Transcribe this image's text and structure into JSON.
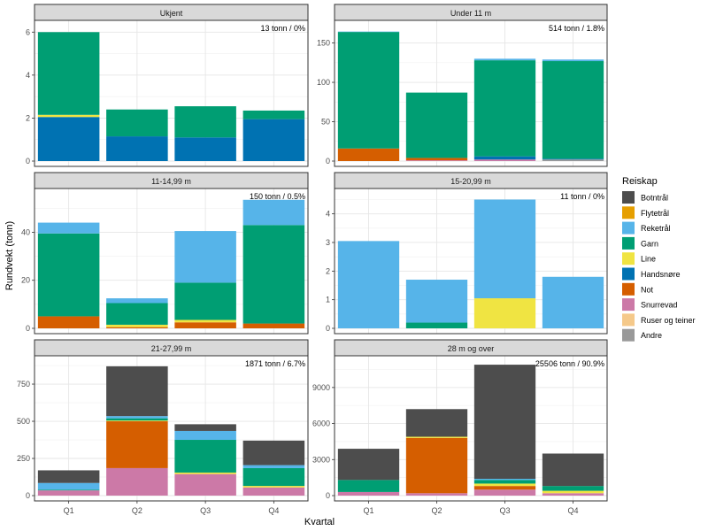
{
  "chart_data": {
    "type": "bar",
    "stacked": true,
    "facet_layout": "3x2",
    "xlabel": "Kvartal",
    "ylabel": "Rundvekt (tonn)",
    "categories": [
      "Q1",
      "Q2",
      "Q3",
      "Q4"
    ],
    "legend": {
      "title": "Reiskap",
      "placement": "right",
      "entries": [
        {
          "name": "Botntrål",
          "color": "#4d4d4d"
        },
        {
          "name": "Flytetrål",
          "color": "#e69f00"
        },
        {
          "name": "Reketrål",
          "color": "#56b4e9"
        },
        {
          "name": "Garn",
          "color": "#009e73"
        },
        {
          "name": "Line",
          "color": "#f0e442"
        },
        {
          "name": "Handsnøre",
          "color": "#0072b2"
        },
        {
          "name": "Not",
          "color": "#d55e00"
        },
        {
          "name": "Snurrevad",
          "color": "#cc79a7"
        },
        {
          "name": "Ruser og teiner",
          "color": "#f5c98a"
        },
        {
          "name": "Andre",
          "color": "#999999"
        }
      ]
    },
    "stack_order_bottom_to_top": [
      "Andre",
      "Ruser og teiner",
      "Snurrevad",
      "Not",
      "Handsnøre",
      "Line",
      "Garn",
      "Reketrål",
      "Flytetrål",
      "Botntrål"
    ],
    "panels": [
      {
        "title": "Ukjent",
        "annotation": "13 tonn / 0%",
        "ylim": [
          0,
          6.3
        ],
        "ticks": [
          0,
          2,
          4,
          6
        ],
        "stacks": [
          {
            "category": "Q1",
            "segments": [
              {
                "gear": "Handsnøre",
                "value": 2.05
              },
              {
                "gear": "Line",
                "value": 0.1
              },
              {
                "gear": "Garn",
                "value": 3.85
              }
            ]
          },
          {
            "category": "Q2",
            "segments": [
              {
                "gear": "Handsnøre",
                "value": 1.15
              },
              {
                "gear": "Garn",
                "value": 1.25
              }
            ]
          },
          {
            "category": "Q3",
            "segments": [
              {
                "gear": "Handsnøre",
                "value": 1.1
              },
              {
                "gear": "Garn",
                "value": 1.45
              }
            ]
          },
          {
            "category": "Q4",
            "segments": [
              {
                "gear": "Handsnøre",
                "value": 1.95
              },
              {
                "gear": "Garn",
                "value": 0.4
              }
            ]
          }
        ]
      },
      {
        "title": "Under 11 m",
        "annotation": "514 tonn / 1.8%",
        "ylim": [
          0,
          172
        ],
        "ticks": [
          0,
          50,
          100,
          150
        ],
        "stacks": [
          {
            "category": "Q1",
            "segments": [
              {
                "gear": "Not",
                "value": 16
              },
              {
                "gear": "Garn",
                "value": 148
              },
              {
                "gear": "Reketrål",
                "value": 0.5
              }
            ]
          },
          {
            "category": "Q2",
            "segments": [
              {
                "gear": "Snurrevad",
                "value": 1
              },
              {
                "gear": "Not",
                "value": 3
              },
              {
                "gear": "Garn",
                "value": 83
              }
            ]
          },
          {
            "category": "Q3",
            "segments": [
              {
                "gear": "Snurrevad",
                "value": 2
              },
              {
                "gear": "Handsnøre",
                "value": 4
              },
              {
                "gear": "Garn",
                "value": 122
              },
              {
                "gear": "Reketrål",
                "value": 2
              }
            ]
          },
          {
            "category": "Q4",
            "segments": [
              {
                "gear": "Andre",
                "value": 2
              },
              {
                "gear": "Handsnøre",
                "value": 1
              },
              {
                "gear": "Garn",
                "value": 124
              },
              {
                "gear": "Reketrål",
                "value": 2
              }
            ]
          }
        ]
      },
      {
        "title": "11-14,99 m",
        "annotation": "150 tonn / 0.5%",
        "ylim": [
          0,
          56
        ],
        "ticks": [
          0,
          20,
          40
        ],
        "stacks": [
          {
            "category": "Q1",
            "segments": [
              {
                "gear": "Not",
                "value": 5
              },
              {
                "gear": "Garn",
                "value": 34.5
              },
              {
                "gear": "Reketrål",
                "value": 4.5
              }
            ]
          },
          {
            "category": "Q2",
            "segments": [
              {
                "gear": "Not",
                "value": 0.5
              },
              {
                "gear": "Line",
                "value": 1
              },
              {
                "gear": "Garn",
                "value": 9
              },
              {
                "gear": "Reketrål",
                "value": 2
              }
            ]
          },
          {
            "category": "Q3",
            "segments": [
              {
                "gear": "Not",
                "value": 2.5
              },
              {
                "gear": "Line",
                "value": 1
              },
              {
                "gear": "Garn",
                "value": 15.5
              },
              {
                "gear": "Reketrål",
                "value": 21.5
              }
            ]
          },
          {
            "category": "Q4",
            "segments": [
              {
                "gear": "Not",
                "value": 2
              },
              {
                "gear": "Garn",
                "value": 41
              },
              {
                "gear": "Reketrål",
                "value": 10.5
              }
            ]
          }
        ]
      },
      {
        "title": "15-20,99 m",
        "annotation": "11 tonn / 0%",
        "ylim": [
          0,
          4.7
        ],
        "ticks": [
          0,
          1,
          2,
          3,
          4
        ],
        "stacks": [
          {
            "category": "Q1",
            "segments": [
              {
                "gear": "Reketrål",
                "value": 3.05
              }
            ]
          },
          {
            "category": "Q2",
            "segments": [
              {
                "gear": "Garn",
                "value": 0.2
              },
              {
                "gear": "Reketrål",
                "value": 1.5
              }
            ]
          },
          {
            "category": "Q3",
            "segments": [
              {
                "gear": "Line",
                "value": 1.05
              },
              {
                "gear": "Reketrål",
                "value": 3.45
              }
            ]
          },
          {
            "category": "Q4",
            "segments": [
              {
                "gear": "Reketrål",
                "value": 1.8
              }
            ]
          }
        ]
      },
      {
        "title": "21-27,99 m",
        "annotation": "1871 tonn / 6.7%",
        "ylim": [
          0,
          905
        ],
        "ticks": [
          0,
          250,
          500,
          750
        ],
        "stacks": [
          {
            "category": "Q1",
            "segments": [
              {
                "gear": "Snurrevad",
                "value": 35
              },
              {
                "gear": "Garn",
                "value": 5
              },
              {
                "gear": "Reketrål",
                "value": 45
              },
              {
                "gear": "Botntrål",
                "value": 85
              }
            ]
          },
          {
            "category": "Q2",
            "segments": [
              {
                "gear": "Snurrevad",
                "value": 185
              },
              {
                "gear": "Not",
                "value": 315
              },
              {
                "gear": "Line",
                "value": 5
              },
              {
                "gear": "Garn",
                "value": 15
              },
              {
                "gear": "Reketrål",
                "value": 15
              },
              {
                "gear": "Botntrål",
                "value": 335
              }
            ]
          },
          {
            "category": "Q3",
            "segments": [
              {
                "gear": "Snurrevad",
                "value": 145
              },
              {
                "gear": "Line",
                "value": 10
              },
              {
                "gear": "Garn",
                "value": 220
              },
              {
                "gear": "Reketrål",
                "value": 60
              },
              {
                "gear": "Botntrål",
                "value": 45
              }
            ]
          },
          {
            "category": "Q4",
            "segments": [
              {
                "gear": "Snurrevad",
                "value": 55
              },
              {
                "gear": "Line",
                "value": 10
              },
              {
                "gear": "Garn",
                "value": 120
              },
              {
                "gear": "Reketrål",
                "value": 20
              },
              {
                "gear": "Botntrål",
                "value": 165
              }
            ]
          }
        ]
      },
      {
        "title": "28 m og over",
        "annotation": "25506 tonn / 90.9%",
        "ylim": [
          0,
          11200
        ],
        "ticks": [
          0,
          3000,
          6000,
          9000
        ],
        "stacks": [
          {
            "category": "Q1",
            "segments": [
              {
                "gear": "Snurrevad",
                "value": 300
              },
              {
                "gear": "Garn",
                "value": 1000
              },
              {
                "gear": "Botntrål",
                "value": 2600
              }
            ]
          },
          {
            "category": "Q2",
            "segments": [
              {
                "gear": "Snurrevad",
                "value": 200
              },
              {
                "gear": "Not",
                "value": 4600
              },
              {
                "gear": "Line",
                "value": 100
              },
              {
                "gear": "Botntrål",
                "value": 2300
              }
            ]
          },
          {
            "category": "Q3",
            "segments": [
              {
                "gear": "Snurrevad",
                "value": 500
              },
              {
                "gear": "Not",
                "value": 300
              },
              {
                "gear": "Line",
                "value": 200
              },
              {
                "gear": "Garn",
                "value": 300
              },
              {
                "gear": "Reketrål",
                "value": 100
              },
              {
                "gear": "Botntrål",
                "value": 9500
              }
            ]
          },
          {
            "category": "Q4",
            "segments": [
              {
                "gear": "Snurrevad",
                "value": 200
              },
              {
                "gear": "Line",
                "value": 200
              },
              {
                "gear": "Garn",
                "value": 400
              },
              {
                "gear": "Botntrål",
                "value": 2700
              }
            ]
          }
        ]
      }
    ]
  }
}
